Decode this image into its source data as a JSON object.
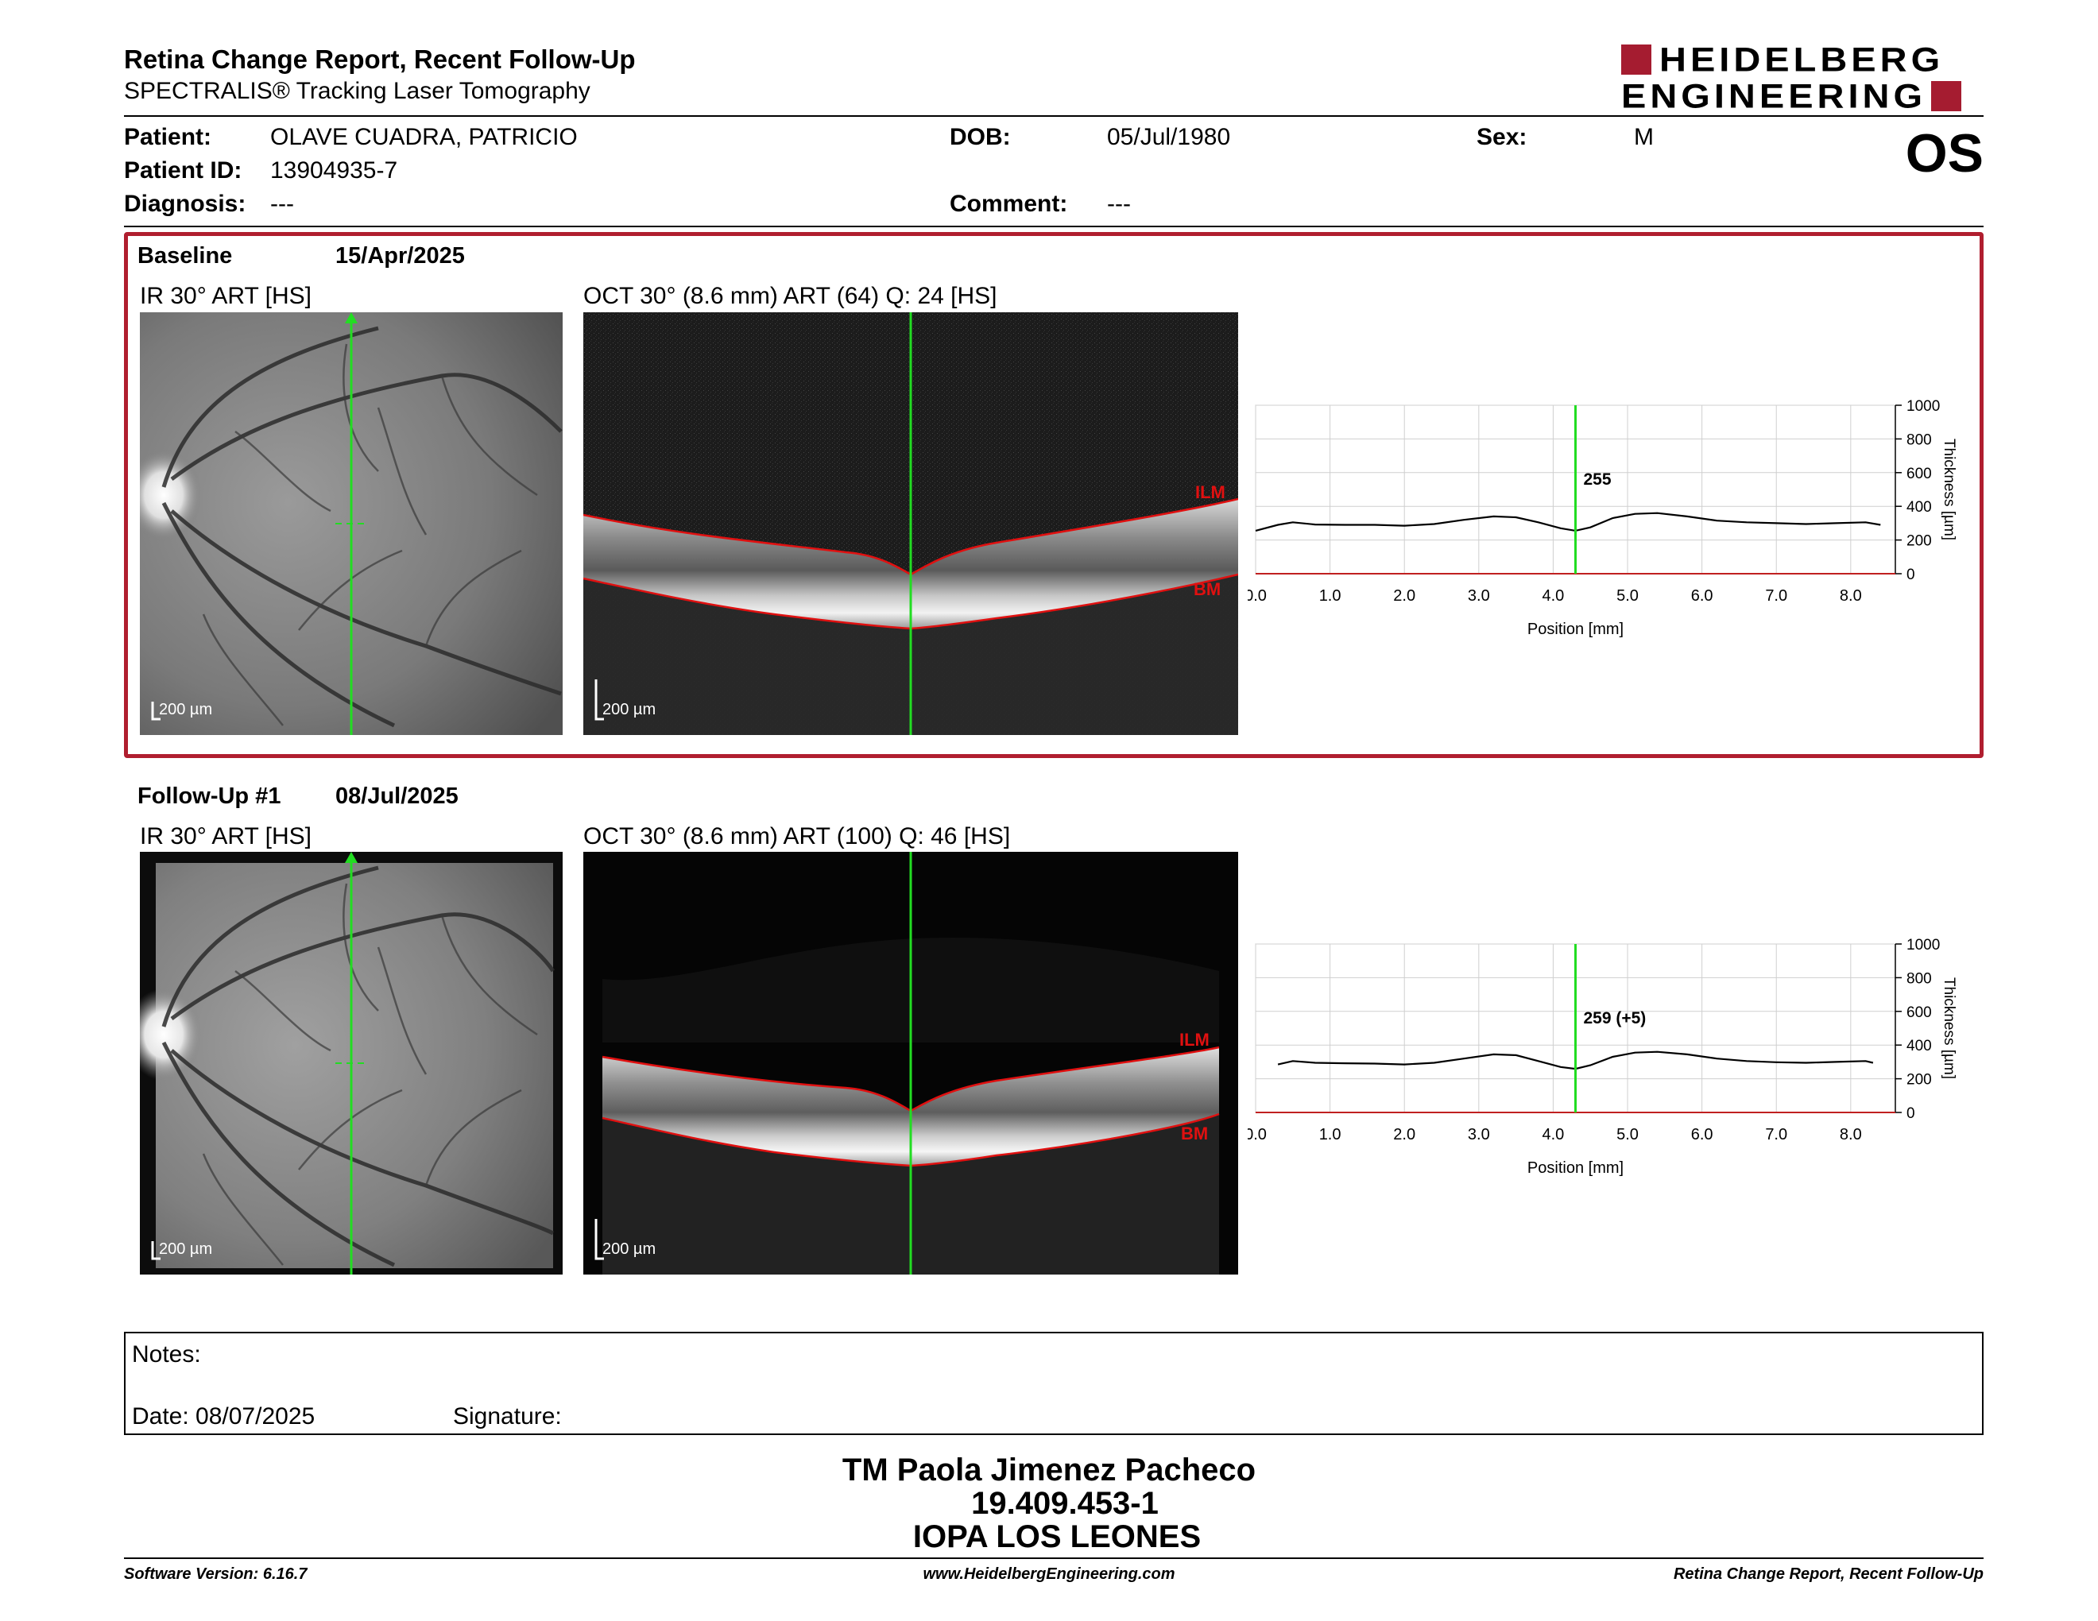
{
  "header": {
    "title": "Retina Change Report, Recent Follow-Up",
    "subtitle": "SPECTRALIS® Tracking Laser Tomography",
    "logo_line1": "HEIDELBERG",
    "logo_line2": "ENGINEERING",
    "eye": "OS"
  },
  "patient": {
    "patient_label": "Patient:",
    "patient_value": "OLAVE CUADRA, PATRICIO",
    "id_label": "Patient ID:",
    "id_value": "13904935-7",
    "diagnosis_label": "Diagnosis:",
    "diagnosis_value": "---",
    "dob_label": "DOB:",
    "dob_value": "05/Jul/1980",
    "comment_label": "Comment:",
    "comment_value": "---",
    "sex_label": "Sex:",
    "sex_value": "M"
  },
  "baseline": {
    "label": "Baseline",
    "date": "15/Apr/2025",
    "ir_label": "IR 30° ART [HS]",
    "oct_label": "OCT 30° (8.6 mm) ART (64) Q: 24 [HS]",
    "scale_ir": "200 µm",
    "scale_oct": "200 µm",
    "ilm": "ILM",
    "bm": "BM",
    "thickness_label": "255"
  },
  "followup": {
    "label": "Follow-Up #1",
    "date": "08/Jul/2025",
    "ir_label": "IR 30° ART [HS]",
    "oct_label": "OCT 30° (8.6 mm) ART (100) Q: 46 [HS]",
    "scale_ir": "200 µm",
    "scale_oct": "200 µm",
    "ilm": "ILM",
    "bm": "BM",
    "thickness_label": "259 (+5)"
  },
  "chart_data": [
    {
      "type": "line",
      "xlabel": "Position [mm]",
      "ylabel": "Thickness [µm]",
      "xlim": [
        0,
        8.6
      ],
      "ylim": [
        0,
        1000
      ],
      "x_ticks": [
        "0.0",
        "1.0",
        "2.0",
        "3.0",
        "4.0",
        "5.0",
        "6.0",
        "7.0",
        "8.0"
      ],
      "y_ticks": [
        "0",
        "200",
        "400",
        "600",
        "800",
        "1000"
      ],
      "grid": true,
      "marker_position": 4.3,
      "marker_label": "255",
      "x": [
        0.0,
        0.3,
        0.5,
        0.8,
        1.2,
        1.6,
        2.0,
        2.4,
        2.8,
        3.2,
        3.5,
        3.8,
        4.1,
        4.3,
        4.5,
        4.8,
        5.1,
        5.4,
        5.8,
        6.2,
        6.6,
        7.0,
        7.4,
        7.8,
        8.2,
        8.4
      ],
      "y": [
        255,
        290,
        305,
        292,
        290,
        290,
        285,
        295,
        320,
        340,
        335,
        305,
        270,
        255,
        275,
        330,
        355,
        360,
        340,
        315,
        305,
        300,
        295,
        300,
        305,
        290
      ]
    },
    {
      "type": "line",
      "xlabel": "Position [mm]",
      "ylabel": "Thickness [µm]",
      "xlim": [
        0,
        8.6
      ],
      "ylim": [
        0,
        1000
      ],
      "x_ticks": [
        "0.0",
        "1.0",
        "2.0",
        "3.0",
        "4.0",
        "5.0",
        "6.0",
        "7.0",
        "8.0"
      ],
      "y_ticks": [
        "0",
        "200",
        "400",
        "600",
        "800",
        "1000"
      ],
      "grid": true,
      "marker_position": 4.3,
      "marker_label": "259 (+5)",
      "x": [
        0.3,
        0.5,
        0.8,
        1.2,
        1.6,
        2.0,
        2.4,
        2.8,
        3.2,
        3.5,
        3.8,
        4.1,
        4.3,
        4.5,
        4.8,
        5.1,
        5.4,
        5.8,
        6.2,
        6.6,
        7.0,
        7.4,
        7.8,
        8.2,
        8.3
      ],
      "y": [
        285,
        305,
        295,
        292,
        290,
        285,
        295,
        320,
        345,
        340,
        305,
        270,
        259,
        280,
        330,
        355,
        360,
        345,
        320,
        305,
        298,
        295,
        300,
        305,
        295
      ]
    }
  ],
  "notes": {
    "notes_label": "Notes:",
    "date_label": "Date: 08/07/2025",
    "signature_label": "Signature:"
  },
  "signoff": {
    "name": "TM Paola Jimenez Pacheco",
    "id": "19.409.453-1",
    "place": "IOPA LOS LEONES"
  },
  "footer": {
    "left": "Software Version: 6.16.7",
    "center": "www.HeidelbergEngineering.com",
    "right": "Retina Change Report, Recent Follow-Up"
  },
  "colors": {
    "brand": "#a51c30",
    "frame": "#b01e2f",
    "marker": "#22dd22",
    "segment": "#e01010"
  }
}
